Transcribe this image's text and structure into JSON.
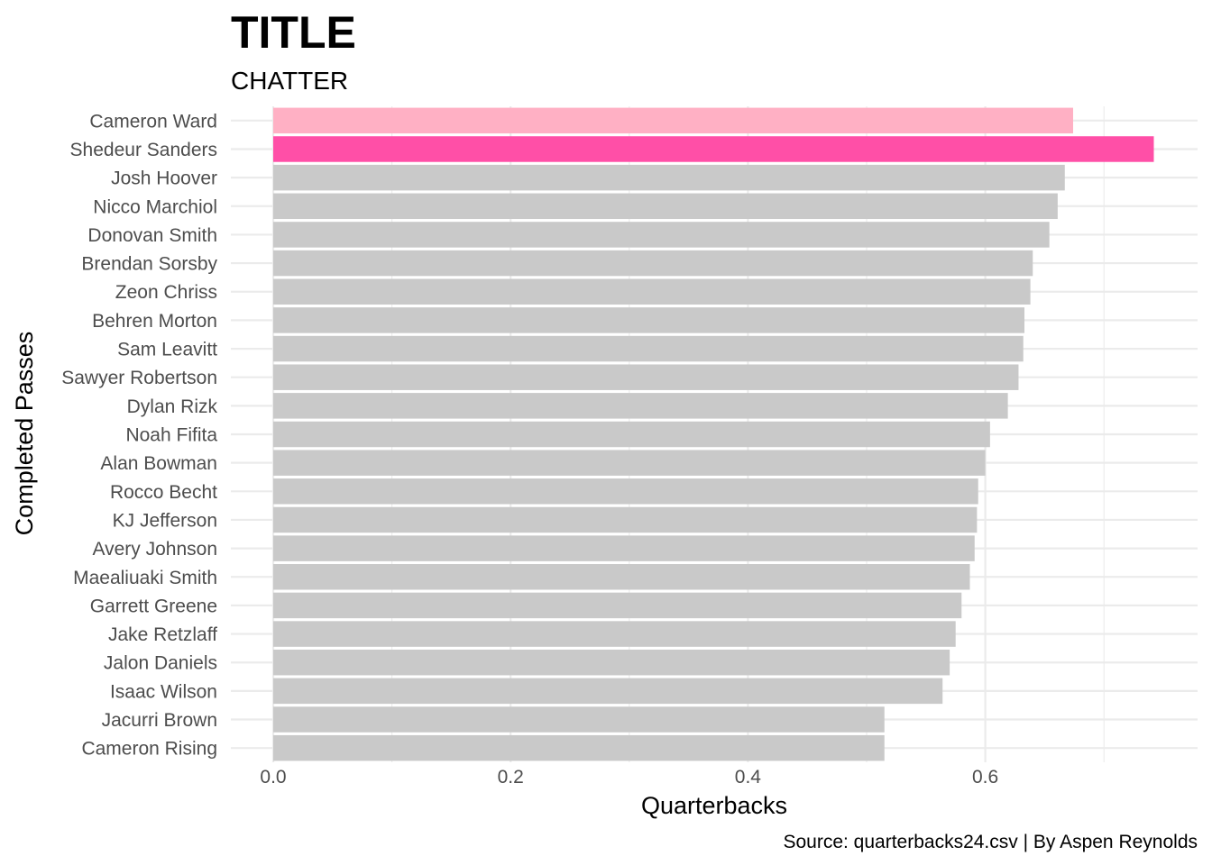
{
  "chart_data": {
    "type": "bar",
    "orientation": "horizontal",
    "title": "TITLE",
    "subtitle": "CHATTER",
    "xlabel": "Quarterbacks",
    "ylabel": "Completed Passes",
    "caption": "Source: quarterbacks24.csv | By Aspen Reynolds",
    "xlim": [
      0,
      0.75
    ],
    "xticks": [
      0.0,
      0.2,
      0.4,
      0.6
    ],
    "xtick_labels": [
      "0.0",
      "0.2",
      "0.4",
      "0.6"
    ],
    "grid": true,
    "legend": "none",
    "categories": [
      "Cameron Ward",
      "Shedeur Sanders",
      "Josh Hoover",
      "Nicco Marchiol",
      "Donovan Smith",
      "Brendan Sorsby",
      "Zeon Chriss",
      "Behren Morton",
      "Sam Leavitt",
      "Sawyer Robertson",
      "Dylan Rizk",
      "Noah Fifita",
      "Alan Bowman",
      "Rocco Becht",
      "KJ Jefferson",
      "Avery Johnson",
      "Maealiuaki Smith",
      "Garrett Greene",
      "Jake Retzlaff",
      "Jalon Daniels",
      "Isaac Wilson",
      "Jacurri Brown",
      "Cameron Rising"
    ],
    "values": [
      0.674,
      0.742,
      0.667,
      0.661,
      0.654,
      0.64,
      0.638,
      0.633,
      0.632,
      0.628,
      0.619,
      0.604,
      0.6,
      0.594,
      0.593,
      0.591,
      0.587,
      0.58,
      0.575,
      0.57,
      0.564,
      0.515,
      0.515
    ],
    "colors": {
      "default": "#c9c9c9",
      "highlights": {
        "Cameron Ward": "#ffb0c4",
        "Shedeur Sanders": "#ff4fa7"
      }
    }
  }
}
